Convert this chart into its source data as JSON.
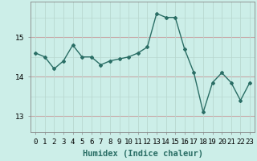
{
  "x": [
    0,
    1,
    2,
    3,
    4,
    5,
    6,
    7,
    8,
    9,
    10,
    11,
    12,
    13,
    14,
    15,
    16,
    17,
    18,
    19,
    20,
    21,
    22,
    23
  ],
  "y": [
    14.6,
    14.5,
    14.2,
    14.4,
    14.8,
    14.5,
    14.5,
    14.3,
    14.4,
    14.45,
    14.5,
    14.6,
    14.75,
    15.6,
    15.5,
    15.5,
    14.7,
    14.1,
    13.1,
    13.85,
    14.1,
    13.85,
    13.4,
    13.85
  ],
  "line_color": "#2a6e65",
  "marker": "D",
  "markersize": 2.0,
  "linewidth": 1.0,
  "bg_color": "#cceee8",
  "grid_color_h": "#c8a8a8",
  "grid_color_v": "#b8d8d0",
  "xlabel": "Humidex (Indice chaleur)",
  "xlabel_fontsize": 7.5,
  "yticks": [
    13,
    14,
    15
  ],
  "ylim": [
    12.6,
    15.9
  ],
  "xlim": [
    -0.5,
    23.5
  ],
  "xtick_labels": [
    "0",
    "1",
    "2",
    "3",
    "4",
    "5",
    "6",
    "7",
    "8",
    "9",
    "10",
    "11",
    "12",
    "13",
    "14",
    "15",
    "16",
    "17",
    "18",
    "19",
    "20",
    "21",
    "22",
    "23"
  ],
  "tick_fontsize": 6.5
}
